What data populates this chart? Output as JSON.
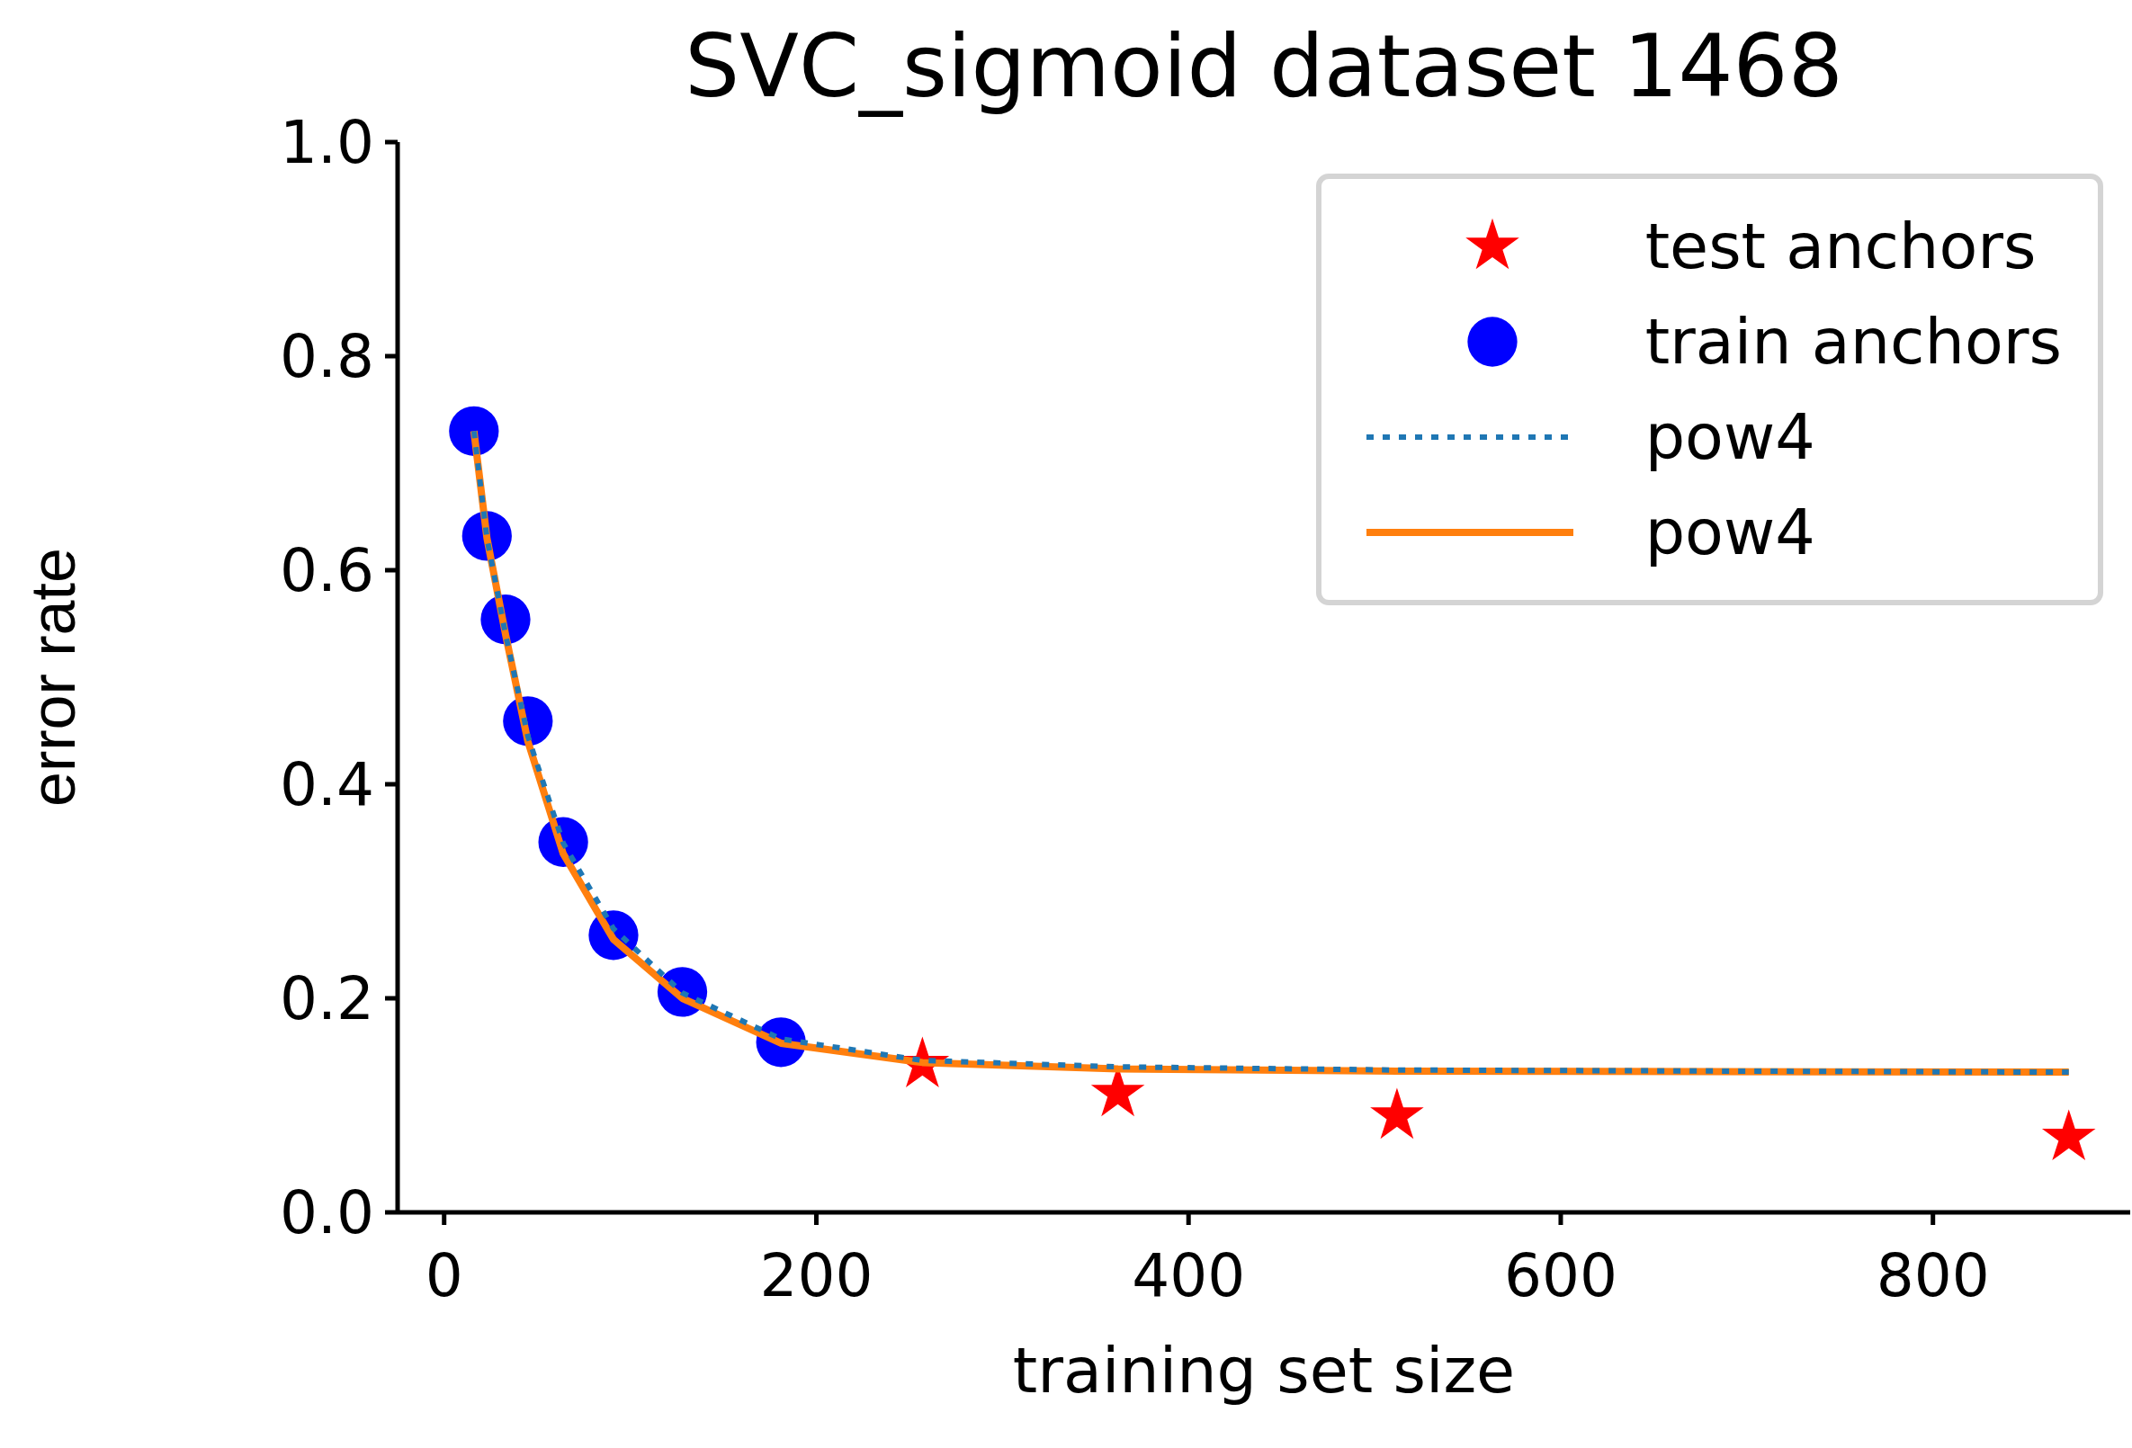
{
  "chart_data": {
    "type": "scatter",
    "title": "SVC_sigmoid dataset 1468",
    "xlabel": "training set size",
    "ylabel": "error rate",
    "xlim": [
      -25,
      906
    ],
    "ylim": [
      0,
      1
    ],
    "xticks": [
      0,
      200,
      400,
      600,
      800
    ],
    "yticks": [
      {
        "value": 0,
        "label": "0.0"
      },
      {
        "value": 0.2,
        "label": "0.2"
      },
      {
        "value": 0.4,
        "label": "0.4"
      },
      {
        "value": 0.6,
        "label": "0.6"
      },
      {
        "value": 0.8,
        "label": "0.8"
      },
      {
        "value": 1,
        "label": "1.0"
      }
    ],
    "legend": "top right",
    "series": [
      {
        "name": "test anchors",
        "marker": "star",
        "color": "#ff0000",
        "x": [
          257,
          362,
          512,
          873
        ],
        "values": [
          0.138,
          0.111,
          0.09,
          0.07
        ]
      },
      {
        "name": "train anchors",
        "marker": "circle",
        "color": "#0000ff",
        "x": [
          16,
          23,
          33,
          45,
          64,
          91,
          128,
          181
        ],
        "values": [
          0.73,
          0.632,
          0.554,
          0.459,
          0.346,
          0.259,
          0.206,
          0.159
        ]
      },
      {
        "name": "pow4",
        "type": "line",
        "line_style": "dotted",
        "color": "#1f77b4",
        "x": [
          16,
          23,
          33,
          45,
          64,
          91,
          128,
          181,
          257,
          362,
          512,
          873
        ],
        "values": [
          0.73,
          0.63,
          0.54,
          0.445,
          0.345,
          0.265,
          0.205,
          0.162,
          0.142,
          0.136,
          0.133,
          0.131
        ]
      },
      {
        "name": "pow4",
        "type": "line",
        "line_style": "solid",
        "color": "#ff7f0e",
        "x": [
          16,
          23,
          33,
          45,
          64,
          91,
          128,
          181,
          257,
          362,
          512,
          873
        ],
        "values": [
          0.73,
          0.63,
          0.54,
          0.44,
          0.335,
          0.255,
          0.2,
          0.158,
          0.14,
          0.134,
          0.132,
          0.131
        ]
      }
    ]
  }
}
